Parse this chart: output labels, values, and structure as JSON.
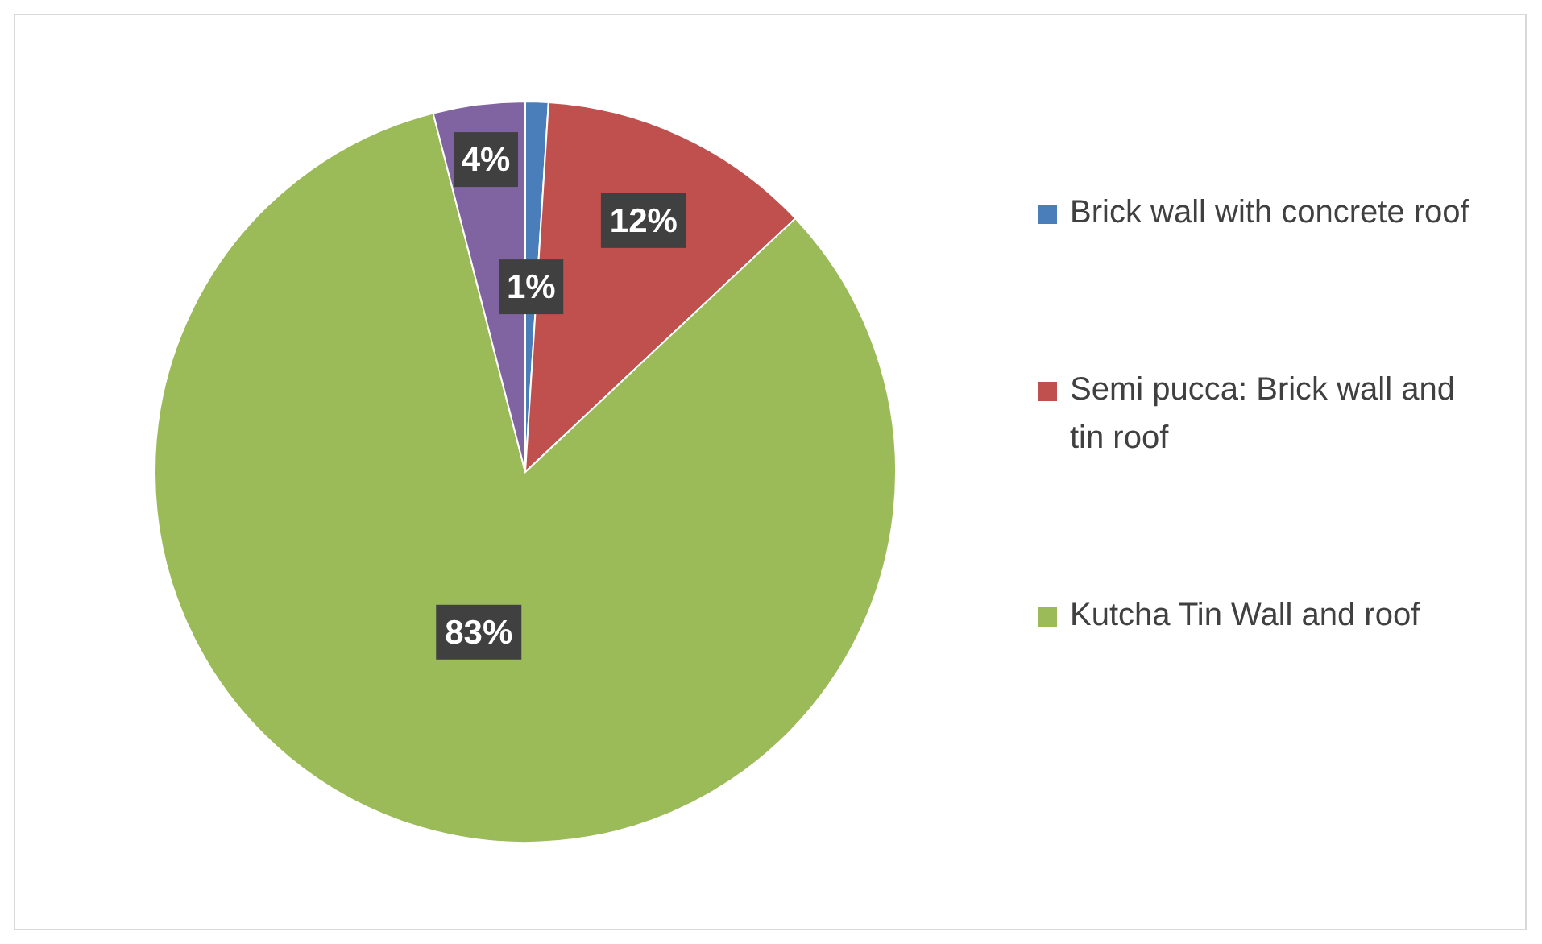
{
  "chart_data": {
    "type": "pie",
    "categories": [
      "Brick wall with concrete roof",
      "Semi pucca: Brick wall and tin roof",
      "Kutcha Tin  Wall and roof",
      null
    ],
    "values": [
      1,
      12,
      83,
      4
    ],
    "colors": [
      "#4a7ebb",
      "#c0504d",
      "#9bbb59",
      "#8064a2"
    ],
    "value_labels": [
      "1%",
      "12%",
      "83%",
      "4%"
    ],
    "legend": "right"
  }
}
